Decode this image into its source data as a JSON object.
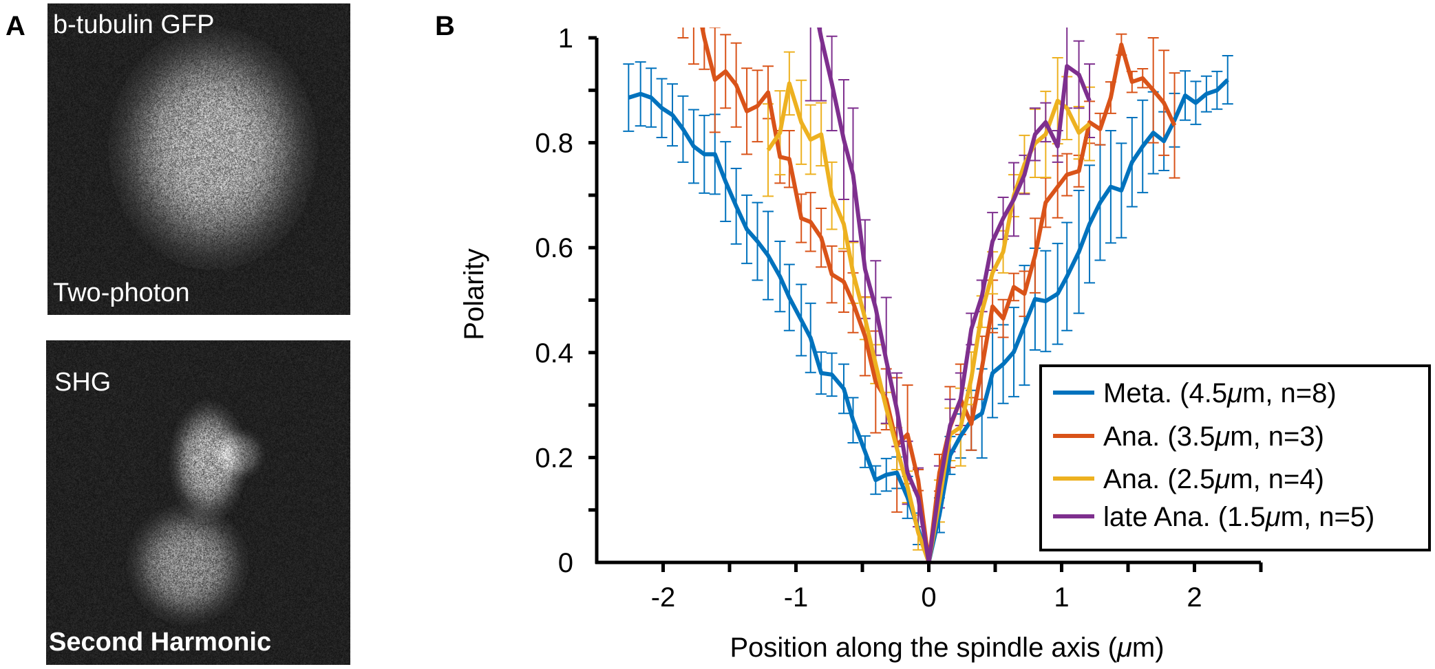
{
  "panel_a": {
    "letter": "A",
    "top_image": {
      "label_top": "b-tubulin GFP",
      "label_bottom": "Two-photon"
    },
    "bottom_image": {
      "label_top": "SHG",
      "label_bottom": "Second Harmonic"
    }
  },
  "panel_b": {
    "letter": "B"
  },
  "chart_data": {
    "type": "line",
    "xlabel_prefix": "Position along the spindle axis (",
    "xlabel_unit": "μ",
    "xlabel_suffix": "m)",
    "ylabel": "Polarity",
    "xlim": [
      -2.5,
      2.5
    ],
    "ylim": [
      0,
      1
    ],
    "xticks": [
      -2,
      -1,
      0,
      1,
      2
    ],
    "xtick_labels": [
      "-2",
      "-1",
      "0",
      "1",
      "2"
    ],
    "xminor_step": 0.5,
    "yticks": [
      0,
      0.2,
      0.4,
      0.6,
      0.8,
      1
    ],
    "ytick_labels": [
      "0",
      "0.2",
      "0.4",
      "0.6",
      "0.8",
      "1"
    ],
    "yminor_step": 0.1,
    "grid": false,
    "legend_position": "bottom-right",
    "error_bars": true,
    "series": [
      {
        "name": "Meta. (4.5μm, n=8)",
        "legend_parts": [
          "Meta. (4.5",
          "μ",
          "m, n=8)"
        ],
        "color": "#0072BD",
        "x": [
          -2.26,
          -2.17,
          -2.09,
          -2.01,
          -1.93,
          -1.85,
          -1.77,
          -1.69,
          -1.61,
          -1.53,
          -1.45,
          -1.37,
          -1.29,
          -1.21,
          -1.12,
          -1.05,
          -0.96,
          -0.89,
          -0.81,
          -0.73,
          -0.64,
          -0.57,
          -0.48,
          -0.4,
          -0.32,
          -0.24,
          -0.16,
          -0.08,
          0,
          0.08,
          0.16,
          0.24,
          0.32,
          0.4,
          0.48,
          0.56,
          0.64,
          0.72,
          0.8,
          0.88,
          0.97,
          1.04,
          1.13,
          1.21,
          1.29,
          1.37,
          1.45,
          1.53,
          1.61,
          1.69,
          1.77,
          1.85,
          1.93,
          2.01,
          2.09,
          2.17,
          2.25
        ],
        "y": [
          0.886,
          0.893,
          0.886,
          0.866,
          0.853,
          0.826,
          0.793,
          0.778,
          0.778,
          0.726,
          0.679,
          0.635,
          0.612,
          0.585,
          0.545,
          0.505,
          0.462,
          0.428,
          0.361,
          0.358,
          0.331,
          0.271,
          0.211,
          0.157,
          0.167,
          0.171,
          0.124,
          0.064,
          0,
          0.09,
          0.204,
          0.241,
          0.271,
          0.284,
          0.361,
          0.378,
          0.401,
          0.452,
          0.502,
          0.498,
          0.512,
          0.545,
          0.592,
          0.645,
          0.686,
          0.716,
          0.709,
          0.763,
          0.793,
          0.819,
          0.803,
          0.843,
          0.89,
          0.876,
          0.893,
          0.9,
          0.92
        ],
        "err": [
          0.064,
          0.061,
          0.056,
          0.056,
          0.059,
          0.063,
          0.07,
          0.074,
          0.076,
          0.076,
          0.072,
          0.065,
          0.074,
          0.084,
          0.067,
          0.063,
          0.068,
          0.066,
          0.04,
          0.041,
          0.047,
          0.043,
          0.03,
          0.027,
          0.031,
          0.03,
          0.04,
          0.03,
          0,
          0.033,
          0.036,
          0.042,
          0.057,
          0.085,
          0.085,
          0.075,
          0.085,
          0.114,
          0.097,
          0.096,
          0.096,
          0.103,
          0.117,
          0.112,
          0.11,
          0.107,
          0.09,
          0.085,
          0.088,
          0.078,
          0.056,
          0.051,
          0.047,
          0.041,
          0.034,
          0.036,
          0.046
        ]
      },
      {
        "name": "Ana. (3.5μm, n=3)",
        "legend_parts": [
          "Ana. (3.5",
          "μ",
          "m, n=3)"
        ],
        "color": "#D95319",
        "x": [
          -1.85,
          -1.77,
          -1.69,
          -1.61,
          -1.53,
          -1.45,
          -1.37,
          -1.29,
          -1.21,
          -1.12,
          -1.05,
          -0.96,
          -0.89,
          -0.81,
          -0.73,
          -0.64,
          -0.57,
          -0.48,
          -0.4,
          -0.32,
          -0.24,
          -0.16,
          -0.08,
          0,
          0.08,
          0.16,
          0.24,
          0.32,
          0.4,
          0.48,
          0.56,
          0.64,
          0.72,
          0.8,
          0.88,
          0.97,
          1.04,
          1.13,
          1.21,
          1.29,
          1.37,
          1.45,
          1.53,
          1.61,
          1.69,
          1.77,
          1.85
        ],
        "y": [
          1.2,
          1.1,
          1.0,
          0.92,
          0.936,
          0.91,
          0.86,
          0.87,
          0.896,
          0.773,
          0.769,
          0.656,
          0.649,
          0.619,
          0.549,
          0.535,
          0.495,
          0.431,
          0.344,
          0.311,
          0.224,
          0.244,
          0.157,
          0,
          0.171,
          0.258,
          0.311,
          0.264,
          0.371,
          0.488,
          0.465,
          0.525,
          0.512,
          0.585,
          0.686,
          0.716,
          0.739,
          0.746,
          0.839,
          0.826,
          0.886,
          0.987,
          0.916,
          0.923,
          0.9,
          0.876,
          0.833
        ],
        "err": [
          0.2,
          0.15,
          0.06,
          0.1,
          0.07,
          0.08,
          0.082,
          0.068,
          0.05,
          0.05,
          0.054,
          0.046,
          0.056,
          0.056,
          0.054,
          0.058,
          0.057,
          0.075,
          0.097,
          0.058,
          0.128,
          0.094,
          0.02,
          0,
          0.035,
          0.077,
          0.067,
          0.05,
          0.06,
          0.05,
          0.036,
          0.026,
          0.043,
          0.071,
          0.047,
          0.059,
          0.04,
          0.03,
          0.04,
          0.03,
          0.03,
          0.02,
          0.02,
          0.018,
          0.1,
          0.1,
          0.1
        ]
      },
      {
        "name": "Ana. (2.5μm, n=4)",
        "legend_parts": [
          "Ana. (2.5",
          "μ",
          "m, n=4)"
        ],
        "color": "#EDB120",
        "x": [
          -1.21,
          -1.12,
          -1.05,
          -0.96,
          -0.89,
          -0.81,
          -0.73,
          -0.64,
          -0.57,
          -0.48,
          -0.4,
          -0.32,
          -0.24,
          -0.16,
          -0.08,
          0,
          0.08,
          0.16,
          0.24,
          0.32,
          0.4,
          0.48,
          0.56,
          0.64,
          0.72,
          0.8,
          0.88,
          0.97,
          1.04,
          1.13,
          1.21
        ],
        "y": [
          0.786,
          0.819,
          0.913,
          0.839,
          0.806,
          0.816,
          0.699,
          0.645,
          0.552,
          0.465,
          0.378,
          0.294,
          0.217,
          0.144,
          0.057,
          0,
          0.117,
          0.244,
          0.258,
          0.351,
          0.478,
          0.552,
          0.592,
          0.699,
          0.759,
          0.799,
          0.816,
          0.88,
          0.866,
          0.819,
          0.836
        ],
        "err": [
          0.088,
          0.08,
          0.06,
          0.08,
          0.066,
          0.06,
          0.064,
          0.047,
          0.058,
          0.04,
          0.037,
          0.03,
          0.04,
          0.03,
          0.033,
          0,
          0.04,
          0.05,
          0.074,
          0.05,
          0.03,
          0.04,
          0.04,
          0.04,
          0.055,
          0.065,
          0.082,
          0.082,
          0.06,
          0.05,
          0.07
        ]
      },
      {
        "name": "late Ana. (1.5μm, n=5)",
        "legend_parts": [
          "late Ana. (1.5",
          "μ",
          "m, n=5)"
        ],
        "color": "#7E2F8E",
        "x": [
          -0.89,
          -0.81,
          -0.73,
          -0.64,
          -0.57,
          -0.48,
          -0.4,
          -0.32,
          -0.24,
          -0.16,
          -0.08,
          0,
          0.08,
          0.16,
          0.24,
          0.32,
          0.4,
          0.48,
          0.56,
          0.64,
          0.72,
          0.8,
          0.88,
          0.97,
          1.04,
          1.13,
          1.21
        ],
        "y": [
          1.1,
          1.0,
          0.913,
          0.806,
          0.739,
          0.559,
          0.485,
          0.385,
          0.291,
          0.171,
          0.124,
          0,
          0.144,
          0.261,
          0.311,
          0.445,
          0.508,
          0.612,
          0.656,
          0.692,
          0.739,
          0.816,
          0.839,
          0.793,
          0.946,
          0.93,
          0.88
        ],
        "err": [
          0.22,
          0.12,
          0.09,
          0.114,
          0.127,
          0.094,
          0.09,
          0.12,
          0.07,
          0.06,
          0.056,
          0,
          0.04,
          0.05,
          0.05,
          0.03,
          0.03,
          0.055,
          0.04,
          0.07,
          0.037,
          0.05,
          0.037,
          0.03,
          0.08,
          0.064,
          0.07
        ]
      }
    ]
  }
}
